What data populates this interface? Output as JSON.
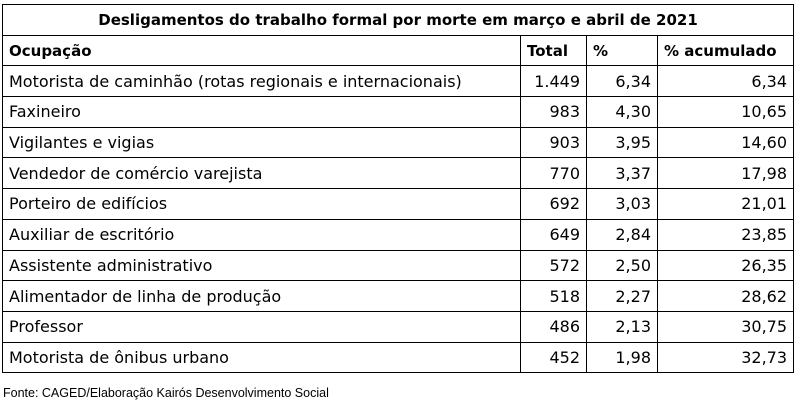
{
  "title": "Desligamentos do trabalho formal por morte em março e abril de 2021",
  "headers": {
    "occupation": "Ocupação",
    "total": "Total",
    "percent": "%",
    "cumulative": "% acumulado"
  },
  "rows": [
    {
      "occupation": "Motorista de caminhão (rotas regionais e internacionais)",
      "total": "1.449",
      "percent": "6,34",
      "cumulative": "6,34"
    },
    {
      "occupation": "Faxineiro",
      "total": "983",
      "percent": "4,30",
      "cumulative": "10,65"
    },
    {
      "occupation": "Vigilantes e vigias",
      "total": "903",
      "percent": "3,95",
      "cumulative": "14,60"
    },
    {
      "occupation": "Vendedor de comércio varejista",
      "total": "770",
      "percent": "3,37",
      "cumulative": "17,98"
    },
    {
      "occupation": "Porteiro de edifícios",
      "total": "692",
      "percent": "3,03",
      "cumulative": "21,01"
    },
    {
      "occupation": "Auxiliar de escritório",
      "total": "649",
      "percent": "2,84",
      "cumulative": "23,85"
    },
    {
      "occupation": "Assistente administrativo",
      "total": "572",
      "percent": "2,50",
      "cumulative": "26,35"
    },
    {
      "occupation": "Alimentador de linha de produção",
      "total": "518",
      "percent": "2,27",
      "cumulative": "28,62"
    },
    {
      "occupation": "Professor",
      "total": "486",
      "percent": "2,13",
      "cumulative": "30,75"
    },
    {
      "occupation": "Motorista de ônibus urbano",
      "total": "452",
      "percent": "1,98",
      "cumulative": "32,73"
    }
  ],
  "source": "Fonte: CAGED/Elaboração Kairós Desenvolvimento Social"
}
